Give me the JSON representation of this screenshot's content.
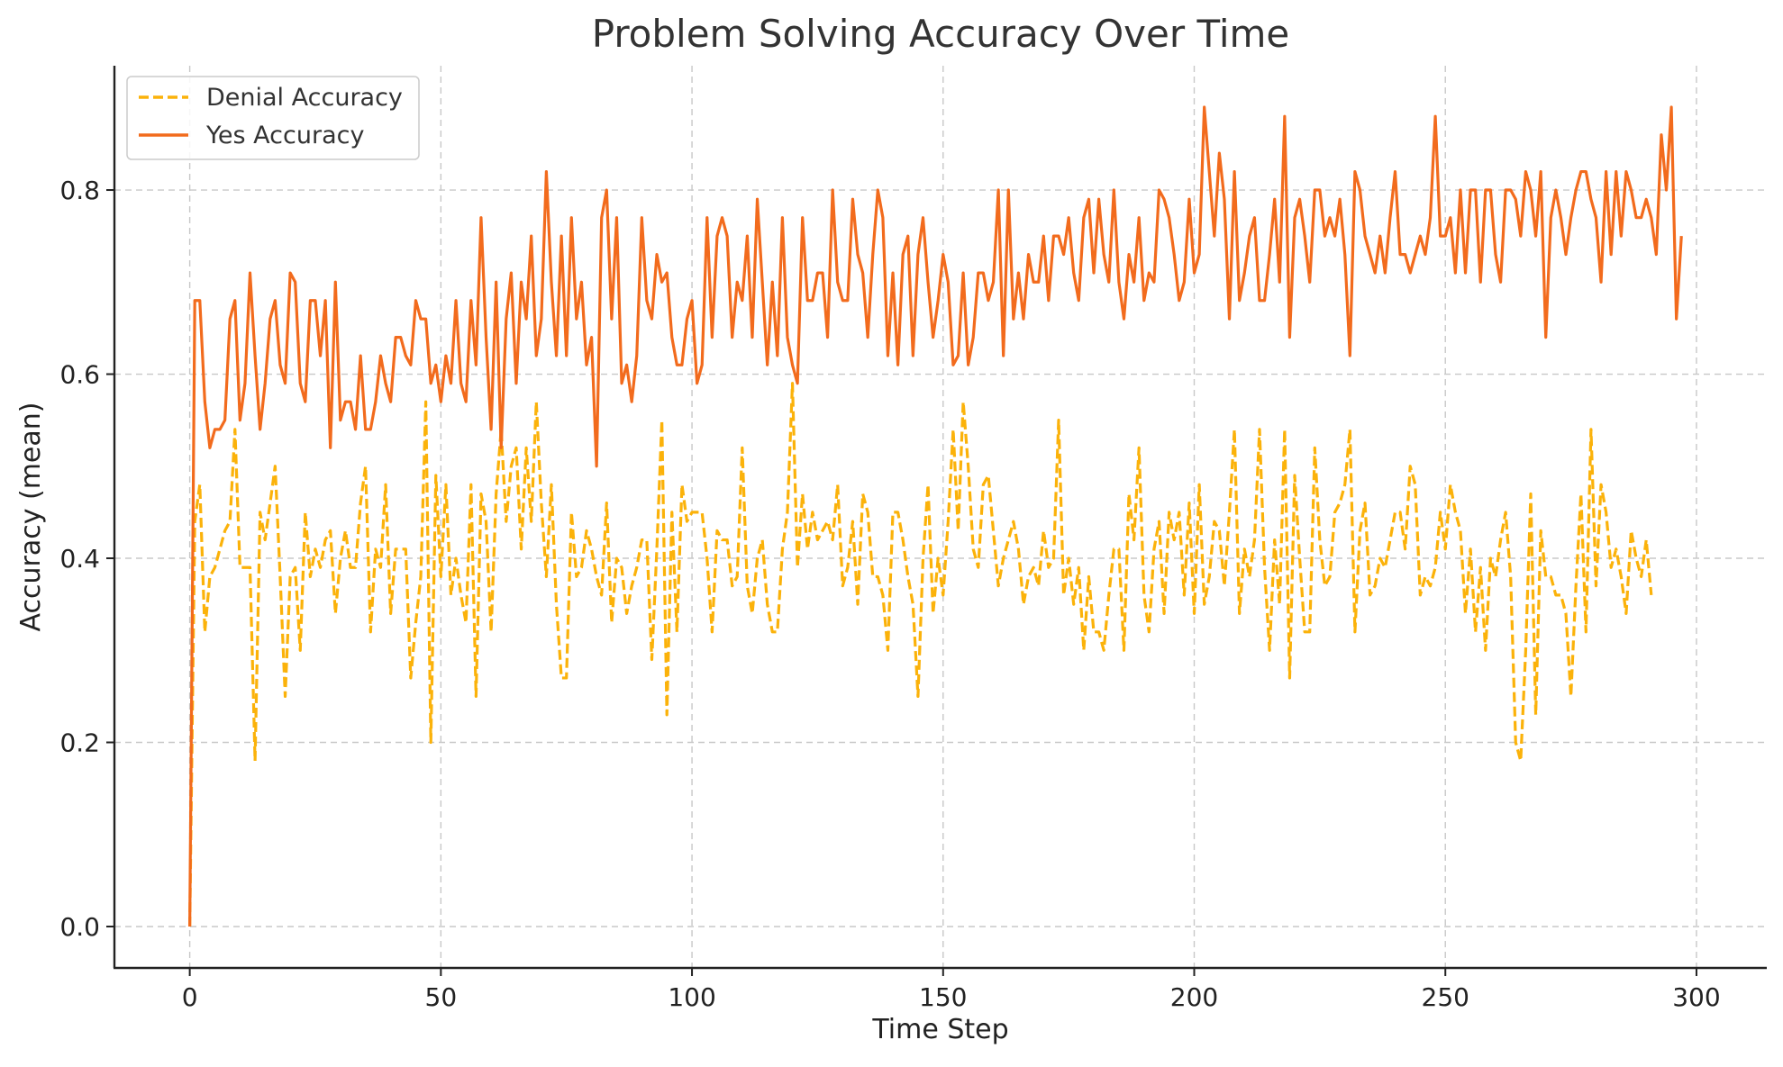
{
  "chart_data": {
    "type": "line",
    "title": "Problem Solving Accuracy Over Time",
    "xlabel": "Time Step",
    "ylabel": "Accuracy (mean)",
    "xlim": [
      -15,
      314
    ],
    "ylim": [
      -0.045,
      0.935
    ],
    "xticks": [
      0,
      50,
      100,
      150,
      200,
      250,
      300
    ],
    "yticks": [
      0.0,
      0.2,
      0.4,
      0.6,
      0.8
    ],
    "xtick_labels": [
      "0",
      "50",
      "100",
      "150",
      "200",
      "250",
      "300"
    ],
    "ytick_labels": [
      "0.0",
      "0.2",
      "0.4",
      "0.6",
      "0.8"
    ],
    "grid": true,
    "legend_position": "top-left",
    "series": [
      {
        "name": "Denial Accuracy",
        "color": "#fbb20a",
        "style": "dashed",
        "x_start": 0,
        "values": [
          0.0,
          0.44,
          0.48,
          0.32,
          0.38,
          0.39,
          0.41,
          0.43,
          0.44,
          0.54,
          0.39,
          0.39,
          0.39,
          0.18,
          0.45,
          0.42,
          0.46,
          0.5,
          0.38,
          0.25,
          0.38,
          0.39,
          0.3,
          0.45,
          0.38,
          0.41,
          0.39,
          0.42,
          0.43,
          0.34,
          0.4,
          0.43,
          0.39,
          0.39,
          0.46,
          0.5,
          0.32,
          0.41,
          0.39,
          0.48,
          0.34,
          0.41,
          0.41,
          0.41,
          0.27,
          0.33,
          0.38,
          0.57,
          0.2,
          0.49,
          0.38,
          0.48,
          0.36,
          0.4,
          0.36,
          0.33,
          0.48,
          0.25,
          0.47,
          0.44,
          0.32,
          0.47,
          0.54,
          0.44,
          0.5,
          0.52,
          0.41,
          0.52,
          0.44,
          0.57,
          0.46,
          0.38,
          0.48,
          0.35,
          0.27,
          0.27,
          0.45,
          0.38,
          0.39,
          0.43,
          0.41,
          0.38,
          0.36,
          0.46,
          0.33,
          0.4,
          0.39,
          0.34,
          0.37,
          0.39,
          0.42,
          0.42,
          0.29,
          0.41,
          0.55,
          0.23,
          0.45,
          0.32,
          0.48,
          0.44,
          0.45,
          0.45,
          0.45,
          0.4,
          0.32,
          0.43,
          0.42,
          0.42,
          0.37,
          0.38,
          0.52,
          0.37,
          0.34,
          0.4,
          0.42,
          0.35,
          0.32,
          0.32,
          0.41,
          0.45,
          0.59,
          0.39,
          0.47,
          0.41,
          0.45,
          0.42,
          0.43,
          0.44,
          0.42,
          0.48,
          0.37,
          0.39,
          0.44,
          0.35,
          0.47,
          0.45,
          0.38,
          0.38,
          0.36,
          0.3,
          0.45,
          0.45,
          0.42,
          0.38,
          0.35,
          0.25,
          0.4,
          0.48,
          0.34,
          0.4,
          0.36,
          0.44,
          0.54,
          0.43,
          0.57,
          0.5,
          0.41,
          0.39,
          0.48,
          0.49,
          0.43,
          0.37,
          0.4,
          0.42,
          0.44,
          0.41,
          0.35,
          0.38,
          0.39,
          0.37,
          0.43,
          0.39,
          0.4,
          0.55,
          0.36,
          0.4,
          0.35,
          0.39,
          0.3,
          0.38,
          0.32,
          0.32,
          0.3,
          0.36,
          0.41,
          0.41,
          0.3,
          0.47,
          0.42,
          0.52,
          0.36,
          0.32,
          0.41,
          0.44,
          0.34,
          0.45,
          0.42,
          0.45,
          0.36,
          0.46,
          0.34,
          0.48,
          0.35,
          0.38,
          0.44,
          0.43,
          0.37,
          0.45,
          0.54,
          0.34,
          0.41,
          0.38,
          0.42,
          0.54,
          0.39,
          0.3,
          0.42,
          0.35,
          0.54,
          0.27,
          0.49,
          0.4,
          0.32,
          0.32,
          0.52,
          0.42,
          0.37,
          0.38,
          0.45,
          0.46,
          0.48,
          0.54,
          0.32,
          0.43,
          0.46,
          0.36,
          0.37,
          0.4,
          0.39,
          0.42,
          0.45,
          0.45,
          0.41,
          0.5,
          0.48,
          0.36,
          0.38,
          0.37,
          0.39,
          0.45,
          0.41,
          0.48,
          0.45,
          0.43,
          0.34,
          0.41,
          0.32,
          0.39,
          0.3,
          0.4,
          0.38,
          0.42,
          0.45,
          0.38,
          0.2,
          0.18,
          0.3,
          0.47,
          0.23,
          0.43,
          0.38,
          0.38,
          0.36,
          0.36,
          0.34,
          0.25,
          0.37,
          0.47,
          0.32,
          0.54,
          0.37,
          0.48,
          0.45,
          0.39,
          0.41,
          0.38,
          0.34,
          0.43,
          0.4,
          0.38,
          0.42,
          0.36
        ]
      },
      {
        "name": "Yes Accuracy",
        "color": "#f26b1d",
        "style": "solid",
        "x_start": 0,
        "values": [
          0.0,
          0.68,
          0.68,
          0.57,
          0.52,
          0.54,
          0.54,
          0.55,
          0.66,
          0.68,
          0.55,
          0.59,
          0.71,
          0.62,
          0.54,
          0.59,
          0.66,
          0.68,
          0.61,
          0.59,
          0.71,
          0.7,
          0.59,
          0.57,
          0.68,
          0.68,
          0.62,
          0.68,
          0.52,
          0.7,
          0.55,
          0.57,
          0.57,
          0.54,
          0.62,
          0.54,
          0.54,
          0.57,
          0.62,
          0.59,
          0.57,
          0.64,
          0.64,
          0.62,
          0.61,
          0.68,
          0.66,
          0.66,
          0.59,
          0.61,
          0.57,
          0.62,
          0.59,
          0.68,
          0.59,
          0.57,
          0.68,
          0.61,
          0.77,
          0.64,
          0.54,
          0.7,
          0.52,
          0.66,
          0.71,
          0.59,
          0.7,
          0.66,
          0.75,
          0.62,
          0.66,
          0.82,
          0.7,
          0.62,
          0.75,
          0.62,
          0.77,
          0.66,
          0.7,
          0.61,
          0.64,
          0.5,
          0.77,
          0.8,
          0.66,
          0.77,
          0.59,
          0.61,
          0.57,
          0.62,
          0.77,
          0.68,
          0.66,
          0.73,
          0.7,
          0.71,
          0.64,
          0.61,
          0.61,
          0.66,
          0.68,
          0.59,
          0.61,
          0.77,
          0.64,
          0.75,
          0.77,
          0.75,
          0.64,
          0.7,
          0.68,
          0.75,
          0.64,
          0.79,
          0.7,
          0.61,
          0.7,
          0.62,
          0.77,
          0.64,
          0.61,
          0.59,
          0.77,
          0.68,
          0.68,
          0.71,
          0.71,
          0.64,
          0.8,
          0.7,
          0.68,
          0.68,
          0.79,
          0.73,
          0.71,
          0.64,
          0.73,
          0.8,
          0.77,
          0.62,
          0.71,
          0.61,
          0.73,
          0.75,
          0.62,
          0.73,
          0.77,
          0.7,
          0.64,
          0.68,
          0.73,
          0.7,
          0.61,
          0.62,
          0.71,
          0.61,
          0.64,
          0.71,
          0.71,
          0.68,
          0.7,
          0.8,
          0.62,
          0.8,
          0.66,
          0.71,
          0.66,
          0.73,
          0.7,
          0.7,
          0.75,
          0.68,
          0.75,
          0.75,
          0.73,
          0.77,
          0.71,
          0.68,
          0.77,
          0.79,
          0.71,
          0.79,
          0.73,
          0.7,
          0.8,
          0.7,
          0.66,
          0.73,
          0.7,
          0.77,
          0.68,
          0.71,
          0.7,
          0.8,
          0.79,
          0.77,
          0.73,
          0.68,
          0.7,
          0.79,
          0.71,
          0.73,
          0.89,
          0.82,
          0.75,
          0.84,
          0.79,
          0.66,
          0.82,
          0.68,
          0.71,
          0.75,
          0.77,
          0.68,
          0.68,
          0.73,
          0.79,
          0.7,
          0.88,
          0.64,
          0.77,
          0.79,
          0.75,
          0.7,
          0.8,
          0.8,
          0.75,
          0.77,
          0.75,
          0.79,
          0.73,
          0.62,
          0.82,
          0.8,
          0.75,
          0.73,
          0.71,
          0.75,
          0.71,
          0.77,
          0.82,
          0.73,
          0.73,
          0.71,
          0.73,
          0.75,
          0.73,
          0.77,
          0.88,
          0.75,
          0.75,
          0.77,
          0.71,
          0.8,
          0.71,
          0.8,
          0.8,
          0.7,
          0.8,
          0.8,
          0.73,
          0.7,
          0.8,
          0.8,
          0.79,
          0.75,
          0.82,
          0.8,
          0.75,
          0.82,
          0.64,
          0.77,
          0.8,
          0.77,
          0.73,
          0.77,
          0.8,
          0.82,
          0.82,
          0.79,
          0.77,
          0.7,
          0.82,
          0.73,
          0.82,
          0.75,
          0.82,
          0.8,
          0.77,
          0.77,
          0.79,
          0.77,
          0.73,
          0.86,
          0.8,
          0.89,
          0.66,
          0.75
        ]
      }
    ]
  }
}
